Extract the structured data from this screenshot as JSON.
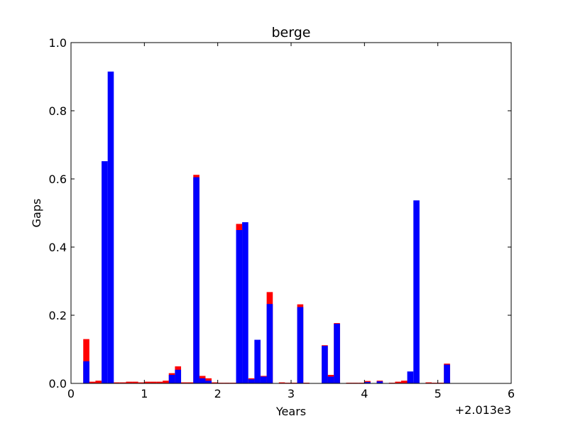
{
  "chart_data": {
    "type": "bar",
    "title": "berge",
    "xlabel": "Years",
    "ylabel": "Gaps",
    "offset_label": "+2.013e3",
    "xlim": [
      0,
      6
    ],
    "ylim": [
      0,
      1.0
    ],
    "x_ticks": [
      "0",
      "1",
      "2",
      "3",
      "4",
      "5",
      "6"
    ],
    "y_ticks": [
      "0.0",
      "0.2",
      "0.4",
      "0.6",
      "0.8",
      "1.0"
    ],
    "bar_width": 0.08333,
    "grid": false,
    "colors": {
      "red": "#ff0000",
      "blue": "#0000ff"
    },
    "series": [
      {
        "color": "#ff0000",
        "x": [
          0.167,
          0.25,
          0.333,
          0.417,
          0.5,
          0.583,
          0.667,
          0.75,
          0.833,
          0.917,
          1.0,
          1.083,
          1.167,
          1.25,
          1.333,
          1.417,
          1.5,
          1.583,
          1.667,
          1.75,
          1.833,
          1.917,
          2.0,
          2.083,
          2.167,
          2.25,
          2.333,
          2.417,
          2.5,
          2.583,
          2.667,
          2.75,
          2.833,
          2.917,
          3.0,
          3.083,
          3.167,
          3.25,
          3.333,
          3.417,
          3.5,
          3.583,
          3.667,
          3.75,
          3.833,
          3.917,
          4.0,
          4.083,
          4.167,
          4.25,
          4.333,
          4.417,
          4.5,
          4.583,
          4.667,
          4.75,
          4.833,
          4.917,
          5.0,
          5.083
        ],
        "values": [
          0.13,
          0.005,
          0.008,
          0.0,
          0.0,
          0.003,
          0.003,
          0.005,
          0.005,
          0.003,
          0.005,
          0.005,
          0.005,
          0.008,
          0.03,
          0.05,
          0.003,
          0.003,
          0.612,
          0.022,
          0.015,
          0.003,
          0.002,
          0.002,
          0.002,
          0.468,
          0.0,
          0.015,
          0.0,
          0.022,
          0.268,
          0.0,
          0.003,
          0.002,
          0.002,
          0.232,
          0.002,
          0.0,
          0.0,
          0.112,
          0.025,
          0.177,
          0.0,
          0.002,
          0.002,
          0.002,
          0.007,
          0.0,
          0.008,
          0.0,
          0.002,
          0.005,
          0.008,
          0.008,
          0.0,
          0.0,
          0.003,
          0.002,
          0.002,
          0.058
        ]
      },
      {
        "color": "#0000ff",
        "x": [
          0.167,
          0.417,
          0.5,
          1.333,
          1.417,
          1.667,
          1.75,
          1.833,
          2.25,
          2.333,
          2.417,
          2.5,
          2.583,
          2.667,
          3.083,
          3.417,
          3.5,
          3.583,
          4.0,
          4.167,
          4.583,
          4.667,
          5.083
        ],
        "values": [
          0.065,
          0.652,
          0.915,
          0.025,
          0.04,
          0.605,
          0.015,
          0.008,
          0.45,
          0.473,
          0.012,
          0.128,
          0.02,
          0.233,
          0.224,
          0.11,
          0.02,
          0.175,
          0.004,
          0.006,
          0.035,
          0.537,
          0.055
        ]
      }
    ]
  }
}
